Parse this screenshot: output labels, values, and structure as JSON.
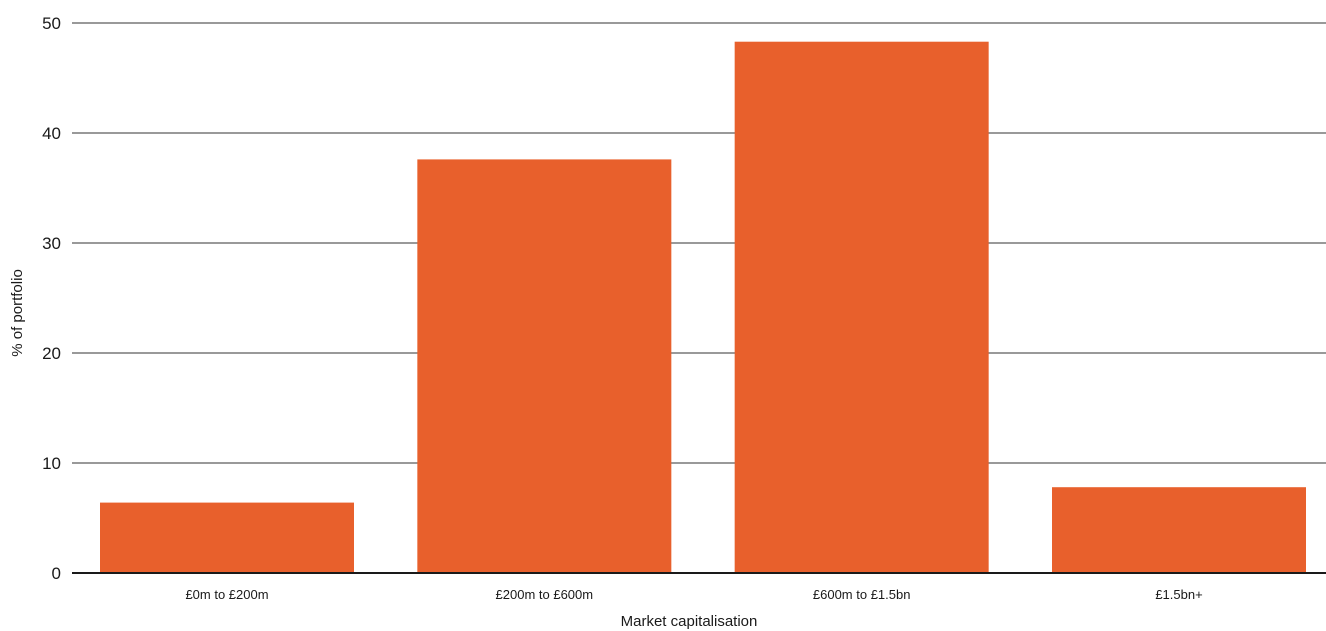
{
  "chart_data": {
    "type": "bar",
    "categories": [
      "£0m to £200m",
      "£200m to £600m",
      "£600m to £1.5bn",
      "£1.5bn+"
    ],
    "values": [
      6.4,
      37.6,
      48.3,
      7.8
    ],
    "xlabel": "Market capitalisation",
    "ylabel": "% of portfolio",
    "ylim": [
      0,
      50
    ],
    "yticks": [
      0,
      10,
      20,
      30,
      40,
      50
    ],
    "grid": true,
    "colors": {
      "bar": "#E8602C",
      "grid": "#333333",
      "text": "#1a1a1a"
    }
  }
}
